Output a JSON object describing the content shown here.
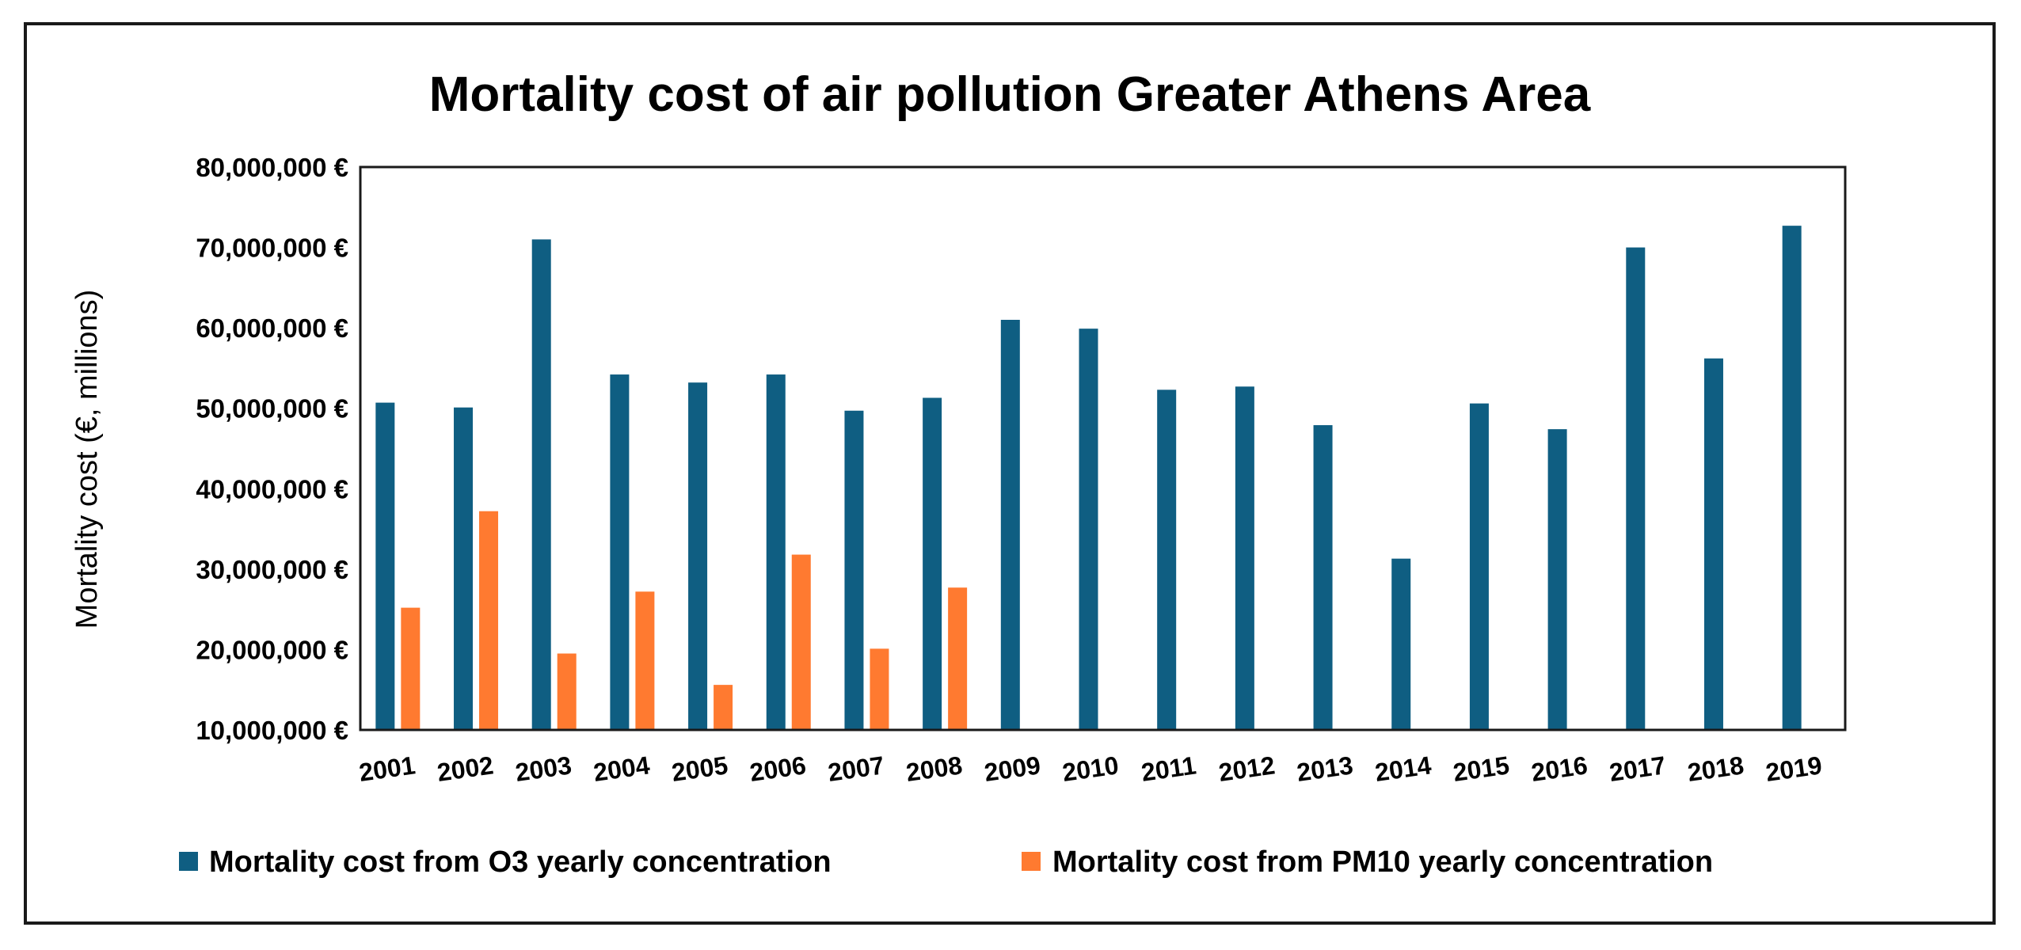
{
  "chart_data": {
    "type": "bar",
    "title": "Mortality cost of air pollution Greater Athens Area",
    "ylabel": "Mortality cost (€, millions)",
    "xlabel": "",
    "categories": [
      "2001",
      "2002",
      "2003",
      "2004",
      "2005",
      "2006",
      "2007",
      "2008",
      "2009",
      "2010",
      "2011",
      "2012",
      "2013",
      "2014",
      "2015",
      "2016",
      "2017",
      "2018",
      "2019"
    ],
    "series": [
      {
        "name": "Mortality cost from O3 yearly concentration",
        "color": "#0f5e82",
        "values": [
          50700000,
          50100000,
          71000000,
          54200000,
          53200000,
          54200000,
          49700000,
          51300000,
          61000000,
          59900000,
          52300000,
          52700000,
          47900000,
          31300000,
          50600000,
          47400000,
          70000000,
          56200000,
          72700000
        ]
      },
      {
        "name": "Mortality cost from PM10 yearly concentration",
        "color": "#ff7a30",
        "values": [
          25200000,
          37200000,
          19500000,
          27200000,
          15600000,
          31800000,
          20100000,
          27700000,
          null,
          null,
          null,
          null,
          null,
          null,
          null,
          null,
          null,
          null,
          null
        ]
      }
    ],
    "ylim": [
      10000000,
      80000000
    ],
    "yticks": [
      "10,000,000 €",
      "20,000,000 €",
      "30,000,000 €",
      "40,000,000 €",
      "50,000,000 €",
      "60,000,000 €",
      "70,000,000 €",
      "80,000,000 €"
    ],
    "grid": false,
    "legend_position": "bottom"
  }
}
